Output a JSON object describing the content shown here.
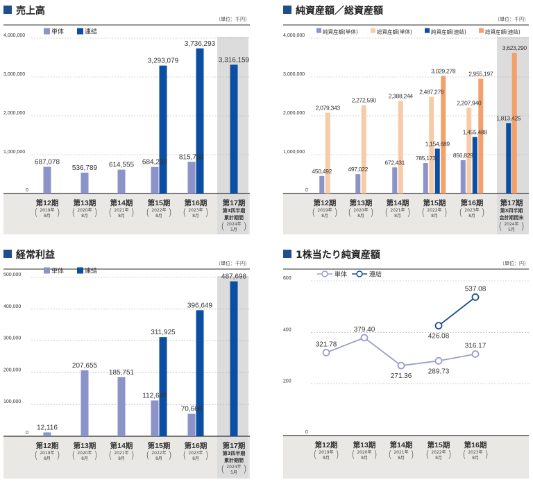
{
  "colors": {
    "title_marker": "#1f4e8c",
    "category_band": "#e9e8e4",
    "highlight_column": "#dcdcdc"
  },
  "chart_data": [
    {
      "type": "bar",
      "title": "売上高",
      "unit": "（単位：千円）",
      "ylim": [
        0,
        4000000
      ],
      "yticks": [
        0,
        1000000,
        2000000,
        3000000,
        4000000
      ],
      "ytick_labels": [
        "0",
        "1,000,000",
        "2,000,000",
        "3,000,000",
        "4,000,000"
      ],
      "grid": true,
      "legend_position": "top-left",
      "categories": [
        {
          "period": "第12期",
          "sub": [],
          "year": "2019年",
          "month": "8月"
        },
        {
          "period": "第13期",
          "sub": [],
          "year": "2020年",
          "month": "8月"
        },
        {
          "period": "第14期",
          "sub": [],
          "year": "2021年",
          "month": "8月"
        },
        {
          "period": "第15期",
          "sub": [],
          "year": "2022年",
          "month": "8月"
        },
        {
          "period": "第16期",
          "sub": [],
          "year": "2023年",
          "month": "8月"
        },
        {
          "period": "第17期",
          "sub": [
            "第3四半期",
            "累計期間"
          ],
          "year": "2024年",
          "month": "5月"
        }
      ],
      "highlight_last": true,
      "series": [
        {
          "name": "単体",
          "color": "#8b93c9",
          "values": [
            687078,
            536789,
            614555,
            684230,
            815758,
            null
          ],
          "labels": [
            "687,078",
            "536,789",
            "614,555",
            "684,230",
            "815,758",
            null
          ]
        },
        {
          "name": "連結",
          "color": "#0b4ea2",
          "values": [
            null,
            null,
            null,
            3293079,
            3736293,
            3316159
          ],
          "labels": [
            null,
            null,
            null,
            "3,293,079",
            "3,736,293",
            "3,316,159"
          ]
        }
      ]
    },
    {
      "type": "bar",
      "title": "純資産額／総資産額",
      "unit": "（単位：千円）",
      "ylim": [
        0,
        4000000
      ],
      "yticks": [
        0,
        1000000,
        2000000,
        3000000,
        4000000
      ],
      "ytick_labels": [
        "0",
        "1,000,000",
        "2,000,000",
        "3,000,000",
        "4,000,000"
      ],
      "grid": true,
      "legend_position": "top",
      "categories": [
        {
          "period": "第12期",
          "sub": [],
          "year": "2019年",
          "month": "8月"
        },
        {
          "period": "第13期",
          "sub": [],
          "year": "2020年",
          "month": "8月"
        },
        {
          "period": "第14期",
          "sub": [],
          "year": "2021年",
          "month": "8月"
        },
        {
          "period": "第15期",
          "sub": [],
          "year": "2022年",
          "month": "8月"
        },
        {
          "period": "第16期",
          "sub": [],
          "year": "2023年",
          "month": "8月"
        },
        {
          "period": "第17期",
          "sub": [
            "第3四半期",
            "会計期間末"
          ],
          "year": "2024年",
          "month": "5月"
        }
      ],
      "highlight_last": true,
      "series": [
        {
          "name": "純資産額(単体)",
          "color": "#8b93c9",
          "values": [
            450492,
            497022,
            672431,
            785173,
            856829,
            null
          ],
          "labels": [
            "450,492",
            "497,022",
            "672,431",
            "785,173",
            "856,829",
            null
          ]
        },
        {
          "name": "総資産額(単体)",
          "color": "#f8cba8",
          "values": [
            2079343,
            2272590,
            2388244,
            2487276,
            2207940,
            null
          ],
          "labels": [
            "2,079,343",
            "2,272,590",
            "2,388,244",
            "2,487,276",
            "2,207,940",
            null
          ]
        },
        {
          "name": "純資産額(連結)",
          "color": "#0b4ea2",
          "values": [
            null,
            null,
            null,
            1154689,
            1455488,
            1813425
          ],
          "labels": [
            null,
            null,
            null,
            "1,154,689",
            "1,455,488",
            "1,813,425"
          ]
        },
        {
          "name": "総資産額(連結)",
          "color": "#f4a06b",
          "values": [
            null,
            null,
            null,
            3029278,
            2955197,
            3623290
          ],
          "labels": [
            null,
            null,
            null,
            "3,029,278",
            "2,955,197",
            "3,623,290"
          ]
        }
      ]
    },
    {
      "type": "bar",
      "title": "経常利益",
      "unit": "（単位：千円）",
      "ylim": [
        0,
        500000
      ],
      "yticks": [
        0,
        100000,
        200000,
        300000,
        400000,
        500000
      ],
      "ytick_labels": [
        "0",
        "100,000",
        "200,000",
        "300,000",
        "400,000",
        "500,000"
      ],
      "grid": true,
      "legend_position": "top-left",
      "categories": [
        {
          "period": "第12期",
          "sub": [],
          "year": "2019年",
          "month": "8月"
        },
        {
          "period": "第13期",
          "sub": [],
          "year": "2020年",
          "month": "8月"
        },
        {
          "period": "第14期",
          "sub": [],
          "year": "2021年",
          "month": "8月"
        },
        {
          "period": "第15期",
          "sub": [],
          "year": "2022年",
          "month": "8月"
        },
        {
          "period": "第16期",
          "sub": [],
          "year": "2023年",
          "month": "8月"
        },
        {
          "period": "第17期",
          "sub": [
            "第3四半期",
            "累計期間"
          ],
          "year": "2024年",
          "month": "5月"
        }
      ],
      "highlight_last": true,
      "series": [
        {
          "name": "単体",
          "color": "#8b93c9",
          "values": [
            12116,
            207655,
            185751,
            112649,
            70668,
            null
          ],
          "labels": [
            "12,116",
            "207,655",
            "185,751",
            "112,649",
            "70,668",
            null
          ]
        },
        {
          "name": "連結",
          "color": "#0b4ea2",
          "values": [
            null,
            null,
            null,
            311925,
            396649,
            487698
          ],
          "labels": [
            null,
            null,
            null,
            "311,925",
            "396,649",
            "487,698"
          ]
        }
      ]
    },
    {
      "type": "line",
      "title": "1株当たり純資産額",
      "unit": "（単位：円）",
      "ylim": [
        0,
        600
      ],
      "yticks": [
        0,
        200,
        400,
        600
      ],
      "ytick_labels": [
        "0",
        "200",
        "400",
        "600"
      ],
      "grid": true,
      "legend_position": "top-left",
      "categories": [
        {
          "period": "第12期",
          "sub": [],
          "year": "2019年",
          "month": "8月"
        },
        {
          "period": "第13期",
          "sub": [],
          "year": "2020年",
          "month": "8月"
        },
        {
          "period": "第14期",
          "sub": [],
          "year": "2021年",
          "month": "8月"
        },
        {
          "period": "第15期",
          "sub": [],
          "year": "2022年",
          "month": "8月"
        },
        {
          "period": "第16期",
          "sub": [],
          "year": "2023年",
          "month": "8月"
        }
      ],
      "highlight_last": false,
      "series": [
        {
          "name": "単体",
          "color": "#9a9ccc",
          "values": [
            321.78,
            379.4,
            271.36,
            289.73,
            316.17
          ],
          "labels": [
            "321.78",
            "379.40",
            "271.36",
            "289.73",
            "316.17"
          ]
        },
        {
          "name": "連結",
          "color": "#1f4e8c",
          "values": [
            null,
            null,
            null,
            426.08,
            537.08
          ],
          "labels": [
            null,
            null,
            null,
            "426.08",
            "537.08"
          ]
        }
      ]
    }
  ]
}
